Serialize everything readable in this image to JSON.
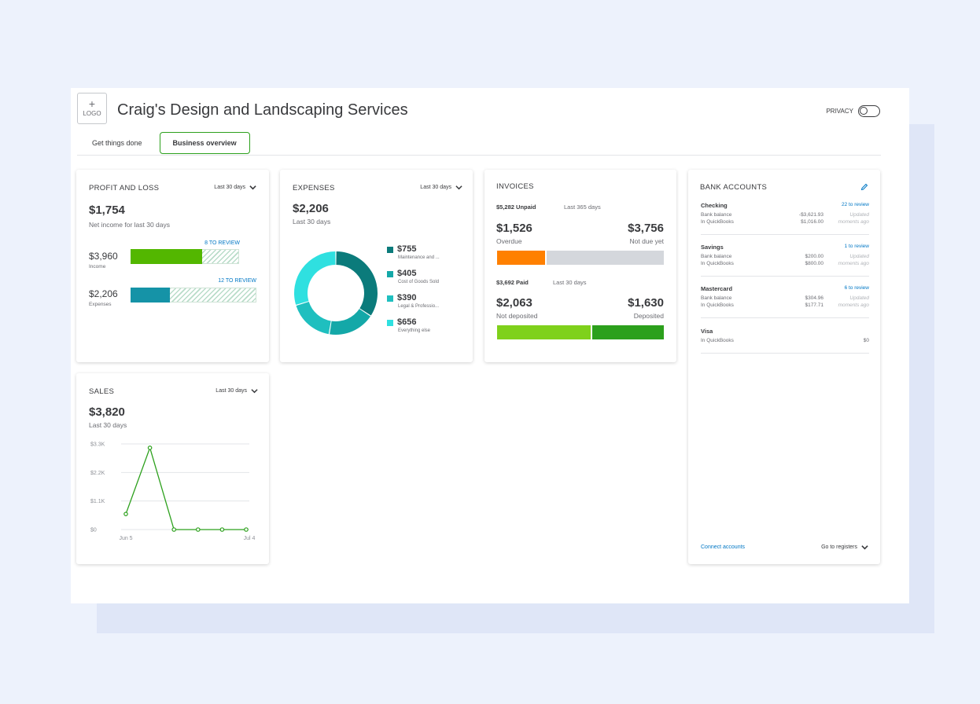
{
  "header": {
    "logo_plus": "+",
    "logo_text": "LOGO",
    "company_name": "Craig's Design and Landscaping Services",
    "privacy_label": "PRIVACY"
  },
  "tabs": [
    {
      "label": "Get things done",
      "active": false
    },
    {
      "label": "Business overview",
      "active": true
    }
  ],
  "profit_loss": {
    "title": "PROFIT AND LOSS",
    "period": "Last 30 days",
    "amount": "$1,754",
    "subtitle": "Net income for last 30 days",
    "income": {
      "amount": "$3,960",
      "label": "Income",
      "review": "8 TO REVIEW",
      "fill_fraction": 0.66
    },
    "expenses": {
      "amount": "$2,206",
      "label": "Expenses",
      "review": "12 TO REVIEW",
      "fill_fraction": 0.31
    }
  },
  "expenses": {
    "title": "EXPENSES",
    "period": "Last 30 days",
    "amount": "$2,206",
    "subtitle": "Last 30 days",
    "categories": [
      {
        "value": "$755",
        "label": "Maintenance and ...",
        "amount": 755,
        "color": "#0b7b7b"
      },
      {
        "value": "$405",
        "label": "Cost of Goods Sold",
        "amount": 405,
        "color": "#14a8a8"
      },
      {
        "value": "$390",
        "label": "Legal & Professio...",
        "amount": 390,
        "color": "#1fbfbf"
      },
      {
        "value": "$656",
        "label": "Everything else",
        "amount": 656,
        "color": "#2fe0e0"
      }
    ]
  },
  "invoices": {
    "title": "INVOICES",
    "unpaid_amount": "$5,282 Unpaid",
    "unpaid_period": "Last 365 days",
    "overdue_amount": "$1,526",
    "overdue_label": "Overdue",
    "not_due_amount": "$3,756",
    "not_due_label": "Not due yet",
    "overdue_fraction": 0.29,
    "paid_amount": "$3,692 Paid",
    "paid_period": "Last 30 days",
    "not_deposited_amount": "$2,063",
    "not_deposited_label": "Not deposited",
    "deposited_amount": "$1,630",
    "deposited_label": "Deposited",
    "not_deposited_fraction": 0.56,
    "colors": {
      "overdue": "#ff8000",
      "not_due": "#d4d7dc",
      "not_deposited": "#7fd11b",
      "deposited": "#2ca01c"
    }
  },
  "bank_accounts": {
    "title": "BANK ACCOUNTS",
    "accounts": [
      {
        "name": "Checking",
        "review": "22 to review",
        "bank_label": "Bank balance",
        "bank_value": "-$3,621.93",
        "qb_label": "In QuickBooks",
        "qb_value": "$1,016.00",
        "updated1": "Updated",
        "updated2": "moments ago"
      },
      {
        "name": "Savings",
        "review": "1 to review",
        "bank_label": "Bank balance",
        "bank_value": "$200.00",
        "qb_label": "In QuickBooks",
        "qb_value": "$800.00",
        "updated1": "Updated",
        "updated2": "moments ago"
      },
      {
        "name": "Mastercard",
        "review": "6 to review",
        "bank_label": "Bank balance",
        "bank_value": "$304.96",
        "qb_label": "In QuickBooks",
        "qb_value": "$177.71",
        "updated1": "Updated",
        "updated2": "moments ago"
      }
    ],
    "visa": {
      "name": "Visa",
      "qb_label": "In QuickBooks",
      "qb_value": "$0"
    },
    "connect_label": "Connect accounts",
    "registers_label": "Go to registers"
  },
  "sales": {
    "title": "SALES",
    "period": "Last 30 days",
    "amount": "$3,820",
    "subtitle": "Last 30 days"
  },
  "chart_data": {
    "type": "line",
    "x_tick_labels": [
      "Jun 5",
      "Jul 4"
    ],
    "y_tick_labels": [
      "$0",
      "$1.1K",
      "$2.2K",
      "$3.3K"
    ],
    "ylim": [
      0,
      3300
    ],
    "series": [
      {
        "values": [
          600,
          3150,
          0,
          0,
          0,
          0
        ],
        "color": "#2ca01c"
      }
    ]
  }
}
